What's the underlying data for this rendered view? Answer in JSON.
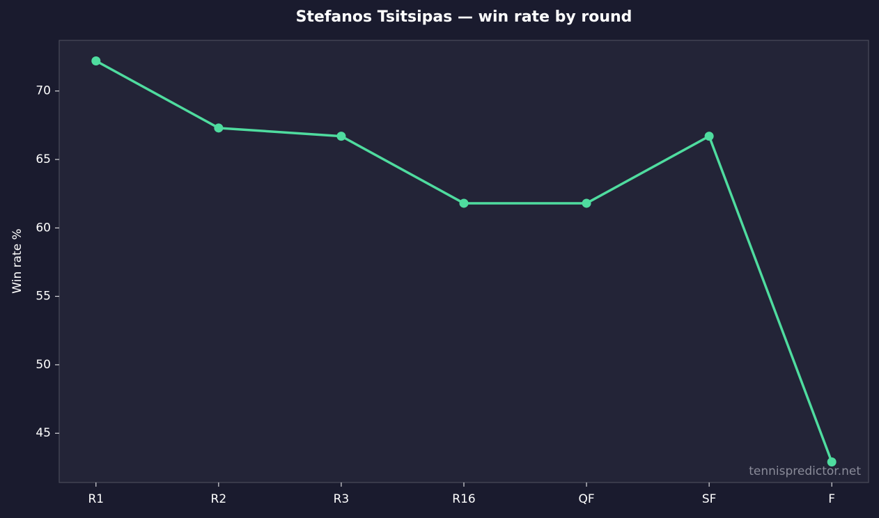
{
  "chart_data": {
    "type": "line",
    "title": "Stefanos Tsitsipas — win rate by round",
    "ylabel": "Win rate %",
    "watermark": "tennispredictor.net",
    "categories": [
      "R1",
      "R2",
      "R3",
      "R16",
      "QF",
      "SF",
      "F"
    ],
    "series": [
      {
        "name": "Win rate",
        "color": "#4fdc9f",
        "values": [
          72.2,
          67.3,
          66.7,
          61.8,
          61.8,
          66.7,
          42.9
        ]
      }
    ],
    "ylim": [
      41.4,
      73.7
    ],
    "yticks": [
      45,
      50,
      55,
      60,
      65,
      70
    ],
    "grid": false
  }
}
